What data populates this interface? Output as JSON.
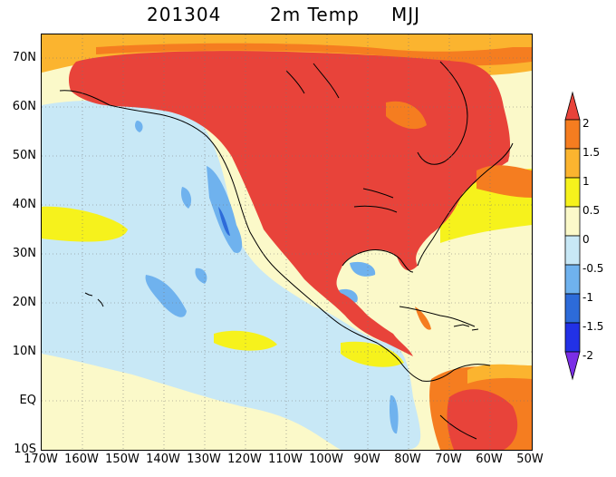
{
  "title": {
    "date": "201304",
    "variable": "2m Temp",
    "season": "MJJ"
  },
  "map": {
    "lat_labels": [
      "70N",
      "60N",
      "50N",
      "40N",
      "30N",
      "20N",
      "10N",
      "EQ",
      "10S"
    ],
    "lon_labels": [
      "170W",
      "160W",
      "150W",
      "140W",
      "130W",
      "120W",
      "110W",
      "100W",
      "90W",
      "80W",
      "70W",
      "60W",
      "50W"
    ],
    "lat_range": [
      -10,
      75
    ],
    "lon_range": [
      -170,
      -50
    ]
  },
  "colorbar": {
    "labels": [
      "2",
      "1.5",
      "1",
      "0.5",
      "0",
      "-0.5",
      "-1",
      "-1.5",
      "-2"
    ],
    "colors": [
      "#e8433a",
      "#f57d20",
      "#fbb42f",
      "#f6f21c",
      "#fbf9c9",
      "#c8e8f6",
      "#6fb2ee",
      "#2d6bd9",
      "#2231e6",
      "#7b2ee6"
    ]
  },
  "legend_colors": {
    "above_2": "#e8433a",
    "1.5_to_2": "#f57d20",
    "1_to_1.5": "#fbb42f",
    "0.5_to_1": "#f6f21c",
    "0_to_0.5": "#fbf9c9",
    "-0.5_to_0": "#c8e8f6",
    "-1_to_-0.5": "#6fb2ee",
    "-1.5_to_-1": "#2d6bd9",
    "-2_to_-1.5": "#2231e6",
    "below_-2": "#7b2ee6"
  }
}
